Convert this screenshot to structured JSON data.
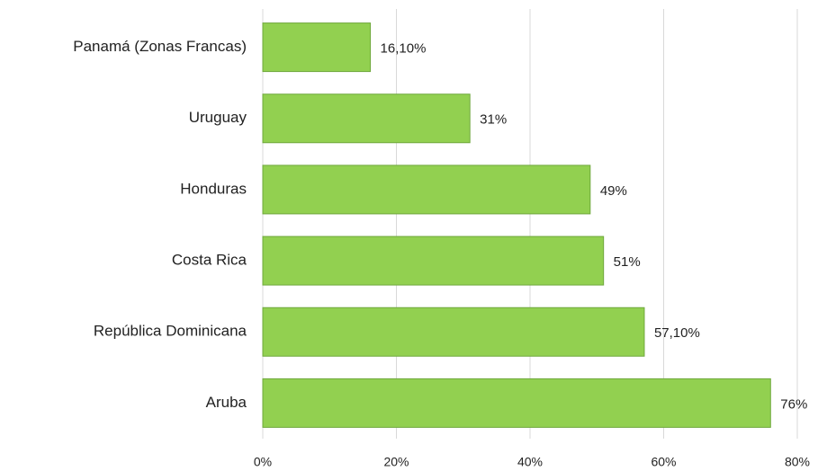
{
  "chart_data": {
    "type": "bar",
    "orientation": "horizontal",
    "categories": [
      "Panamá (Zonas Francas)",
      "Uruguay",
      "Honduras",
      "Costa Rica",
      "República Dominicana",
      "Aruba"
    ],
    "values": [
      16.1,
      31,
      49,
      51,
      57.1,
      76
    ],
    "value_labels": [
      "16,10%",
      "31%",
      "49%",
      "51%",
      "57,10%",
      "76%"
    ],
    "color": "#92d050",
    "xlim": [
      0,
      80
    ],
    "xticks": [
      {
        "value": 0,
        "label": "0%"
      },
      {
        "value": 20,
        "label": "20%"
      },
      {
        "value": 40,
        "label": "40%"
      },
      {
        "value": 60,
        "label": "60%"
      },
      {
        "value": 80,
        "label": "80%"
      }
    ],
    "grid": true
  }
}
